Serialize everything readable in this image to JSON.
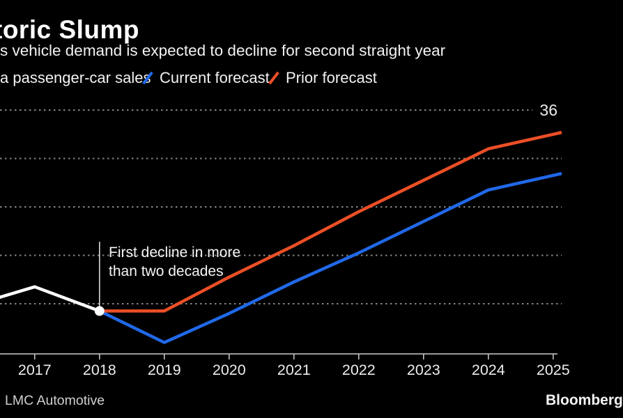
{
  "header": {
    "title": "toric Slump",
    "subtitle": "s vehicle demand is expected to decline for second straight year"
  },
  "legend": {
    "items": [
      {
        "label": "a passenger-car sales",
        "marker": "none",
        "color": "#ffffff"
      },
      {
        "label": "Current forecast",
        "marker": "slash",
        "color": "#2069e8"
      },
      {
        "label": "Prior forecast",
        "marker": "slash",
        "color": "#ec4f26"
      }
    ]
  },
  "annotation": {
    "line1": "First decline in more",
    "line2": "than two decades"
  },
  "axis": {
    "x_tick_labels": [
      "2017",
      "2018",
      "2019",
      "2020",
      "2021",
      "2022",
      "2023",
      "2024",
      "2025"
    ],
    "y_visible_label": "36"
  },
  "source_text": "LMC Automotive",
  "brand_text": "Bloomberg",
  "colors": {
    "background": "#000000",
    "historical_line": "#ffffff",
    "current_forecast": "#2069e8",
    "prior_forecast": "#ec4f26",
    "gridline": "#858585",
    "axis": "#cccccc",
    "text_primary": "#ffffff",
    "text_secondary": "#f2f2f2"
  },
  "chart_data": {
    "type": "line",
    "title_visible": "toric Slump",
    "subtitle_visible": "s vehicle demand is expected to decline for second straight year",
    "ylabel_visible": "36",
    "unit_hint": "millions of vehicles (top gridline labeled 36)",
    "x_ticks": [
      2017,
      2018,
      2019,
      2020,
      2021,
      2022,
      2023,
      2024,
      2025
    ],
    "gridline_values": [
      36,
      34,
      32,
      30,
      28
    ],
    "grid": "dotted horizontal",
    "legend_position": "top",
    "series": [
      {
        "name": "passenger-car sales (historical)",
        "color": "#ffffff",
        "x": [
          2016.5,
          2017,
          2018
        ],
        "y": [
          28.3,
          28.7,
          27.7
        ],
        "clip_left": true,
        "clip_right": false,
        "marker_at_end": true
      },
      {
        "name": "Current forecast",
        "color": "#2069e8",
        "x": [
          2018,
          2019,
          2020,
          2021,
          2022,
          2023,
          2024,
          2025
        ],
        "y": [
          27.7,
          26.4,
          27.6,
          28.9,
          30.1,
          31.4,
          32.7,
          33.3
        ],
        "clip_left": false,
        "clip_right": true
      },
      {
        "name": "Prior forecast",
        "color": "#ec4f26",
        "x": [
          2018,
          2019,
          2020,
          2021,
          2022,
          2023,
          2024,
          2025
        ],
        "y": [
          27.7,
          27.7,
          29.1,
          30.4,
          31.8,
          33.1,
          34.4,
          35.0
        ],
        "clip_left": false,
        "clip_right": true
      }
    ],
    "annotation": {
      "text": "First decline in more than two decades",
      "attached_to": {
        "x": 2018,
        "y": 27.7
      }
    }
  }
}
